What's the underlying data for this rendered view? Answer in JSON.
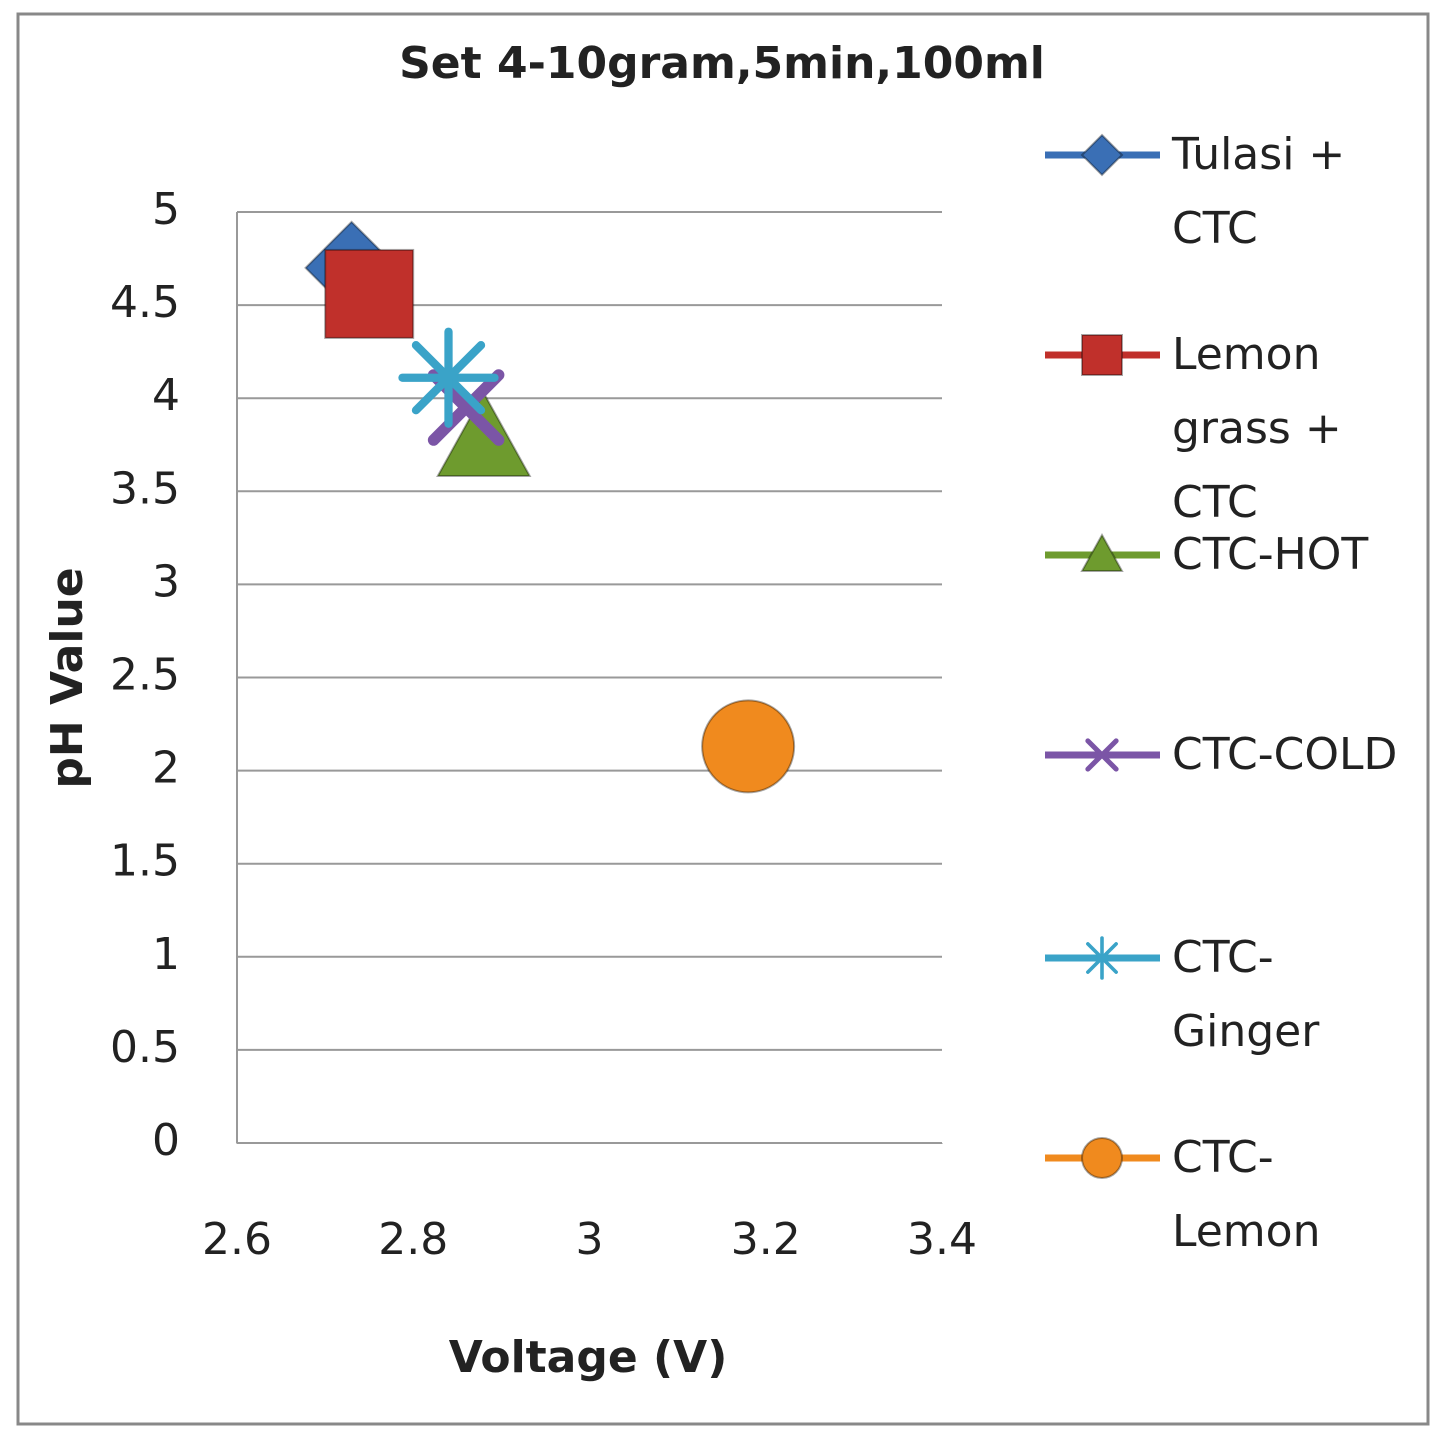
{
  "chart_data": {
    "type": "scatter",
    "title": "Set 4-10gram,5min,100ml",
    "x_label": "Voltage (V)",
    "y_label": "pH Value",
    "xlim": [
      2.6,
      3.4
    ],
    "xticks": [
      2.6,
      2.8,
      3,
      3.2,
      3.4
    ],
    "ylim": [
      0,
      5
    ],
    "yticks": [
      0,
      0.5,
      1,
      1.5,
      2,
      2.5,
      3,
      3.5,
      4,
      4.5,
      5
    ],
    "grid": true,
    "legend": "right",
    "series": [
      {
        "name": "Tulasi + CTC",
        "color": "#3a6fb5",
        "marker": "diamond",
        "x": [
          2.73
        ],
        "values": [
          4.7
        ]
      },
      {
        "name": "Lemon grass + CTC",
        "color": "#c0302b",
        "marker": "square",
        "x": [
          2.75
        ],
        "values": [
          4.56
        ]
      },
      {
        "name": "CTC-HOT",
        "color": "#6e9b2e",
        "marker": "triangle",
        "x": [
          2.88
        ],
        "values": [
          3.78
        ]
      },
      {
        "name": "CTC-COLD",
        "color": "#7b55a6",
        "marker": "x",
        "x": [
          2.86
        ],
        "values": [
          3.95
        ]
      },
      {
        "name": "CTC-Ginger",
        "color": "#3aa3c8",
        "marker": "star",
        "x": [
          2.84
        ],
        "values": [
          4.11
        ]
      },
      {
        "name": "CTC-Lemon",
        "color": "#f08a1e",
        "marker": "circle",
        "x": [
          3.18
        ],
        "values": [
          2.13
        ]
      }
    ]
  }
}
